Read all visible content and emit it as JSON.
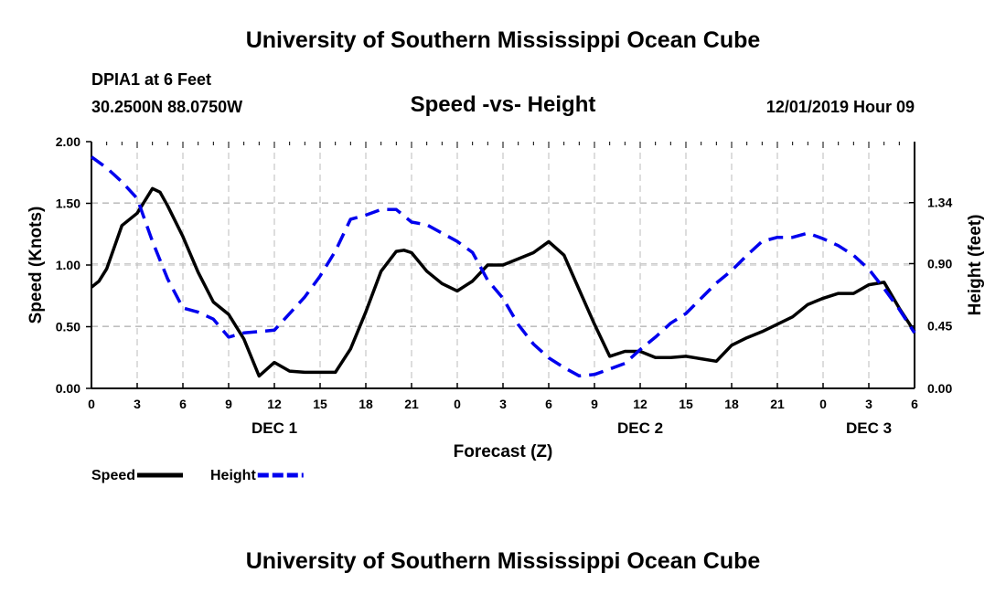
{
  "header": {
    "title": "University of Southern Mississippi Ocean Cube",
    "station": "DPIA1 at 6 Feet",
    "coords": "30.2500N 88.0750W",
    "subtitle": "Speed -vs- Height",
    "date": "12/01/2019 Hour 09"
  },
  "footer": {
    "title": "University of Southern Mississippi Ocean Cube"
  },
  "chart_data": {
    "type": "line",
    "title": "Speed -vs- Height",
    "xlabel": "Forecast (Z)",
    "ylabel": "Speed (Knots)",
    "y2label": "Height (feet)",
    "x_range": [
      0,
      54
    ],
    "ylim": [
      0,
      2.0
    ],
    "y2lim": [
      0,
      1.78
    ],
    "x_ticks": [
      0,
      3,
      6,
      9,
      12,
      15,
      18,
      21,
      24,
      27,
      30,
      33,
      36,
      39,
      42,
      45,
      48,
      51,
      54
    ],
    "x_tick_labels": [
      "0",
      "3",
      "6",
      "9",
      "12",
      "15",
      "18",
      "21",
      "0",
      "3",
      "6",
      "9",
      "12",
      "15",
      "18",
      "21",
      "0",
      "3",
      "6"
    ],
    "y_ticks": [
      0,
      0.5,
      1.0,
      1.5,
      2.0
    ],
    "y_tick_labels": [
      "0.00",
      "0.50",
      "1.00",
      "1.50",
      "2.00"
    ],
    "y2_ticks": [
      0,
      0.45,
      0.9,
      1.34
    ],
    "y2_tick_labels": [
      "0.00",
      "0.45",
      "0.90",
      "1.34"
    ],
    "day_labels": [
      {
        "x": 12,
        "label": "DEC 1"
      },
      {
        "x": 36,
        "label": "DEC 2"
      },
      {
        "x": 51,
        "label": "DEC 3"
      }
    ],
    "grid": true,
    "legend_position": "bottom-left",
    "series": [
      {
        "name": "Speed",
        "axis": "left",
        "color": "#000000",
        "style": "solid",
        "x": [
          0,
          0.5,
          1,
          2,
          3,
          4,
          4.5,
          5,
          6,
          7,
          8,
          9,
          10,
          11,
          12,
          13,
          14,
          15,
          16,
          17,
          18,
          19,
          20,
          20.5,
          21,
          22,
          23,
          24,
          25,
          26,
          27,
          28,
          29,
          30,
          31,
          32,
          33,
          34,
          35,
          36,
          37,
          38,
          39,
          40,
          41,
          42,
          43,
          44,
          45,
          46,
          47,
          48,
          49,
          50,
          51,
          52,
          53,
          54
        ],
        "values": [
          0.82,
          0.87,
          0.97,
          1.32,
          1.42,
          1.62,
          1.59,
          1.48,
          1.23,
          0.94,
          0.7,
          0.6,
          0.4,
          0.1,
          0.21,
          0.14,
          0.13,
          0.13,
          0.13,
          0.32,
          0.62,
          0.95,
          1.11,
          1.12,
          1.1,
          0.95,
          0.85,
          0.79,
          0.87,
          1.0,
          1.0,
          1.05,
          1.1,
          1.19,
          1.08,
          0.8,
          0.52,
          0.26,
          0.3,
          0.3,
          0.25,
          0.25,
          0.26,
          0.24,
          0.22,
          0.35,
          0.41,
          0.46,
          0.52,
          0.58,
          0.68,
          0.73,
          0.77,
          0.77,
          0.84,
          0.86,
          0.65,
          0.46
        ]
      },
      {
        "name": "Height",
        "axis": "right",
        "color": "#0000ee",
        "style": "dashed",
        "x": [
          0,
          1,
          2,
          3,
          4,
          5,
          6,
          7,
          8,
          9,
          10,
          11,
          12,
          13,
          14,
          15,
          16,
          17,
          18,
          19,
          20,
          21,
          22,
          23,
          24,
          25,
          26,
          27,
          28,
          29,
          30,
          31,
          32,
          33,
          34,
          35,
          36,
          37,
          38,
          39,
          40,
          41,
          42,
          43,
          44,
          45,
          46,
          47,
          48,
          49,
          50,
          51,
          52,
          53,
          54
        ],
        "values": [
          1.67,
          1.59,
          1.49,
          1.37,
          1.06,
          0.79,
          0.58,
          0.55,
          0.5,
          0.37,
          0.4,
          0.41,
          0.42,
          0.54,
          0.66,
          0.81,
          0.99,
          1.22,
          1.25,
          1.29,
          1.29,
          1.2,
          1.18,
          1.12,
          1.06,
          0.98,
          0.78,
          0.65,
          0.46,
          0.32,
          0.22,
          0.15,
          0.09,
          0.1,
          0.14,
          0.18,
          0.28,
          0.37,
          0.47,
          0.54,
          0.65,
          0.76,
          0.85,
          0.96,
          1.06,
          1.09,
          1.09,
          1.12,
          1.08,
          1.03,
          0.96,
          0.86,
          0.72,
          0.57,
          0.4
        ]
      }
    ]
  }
}
